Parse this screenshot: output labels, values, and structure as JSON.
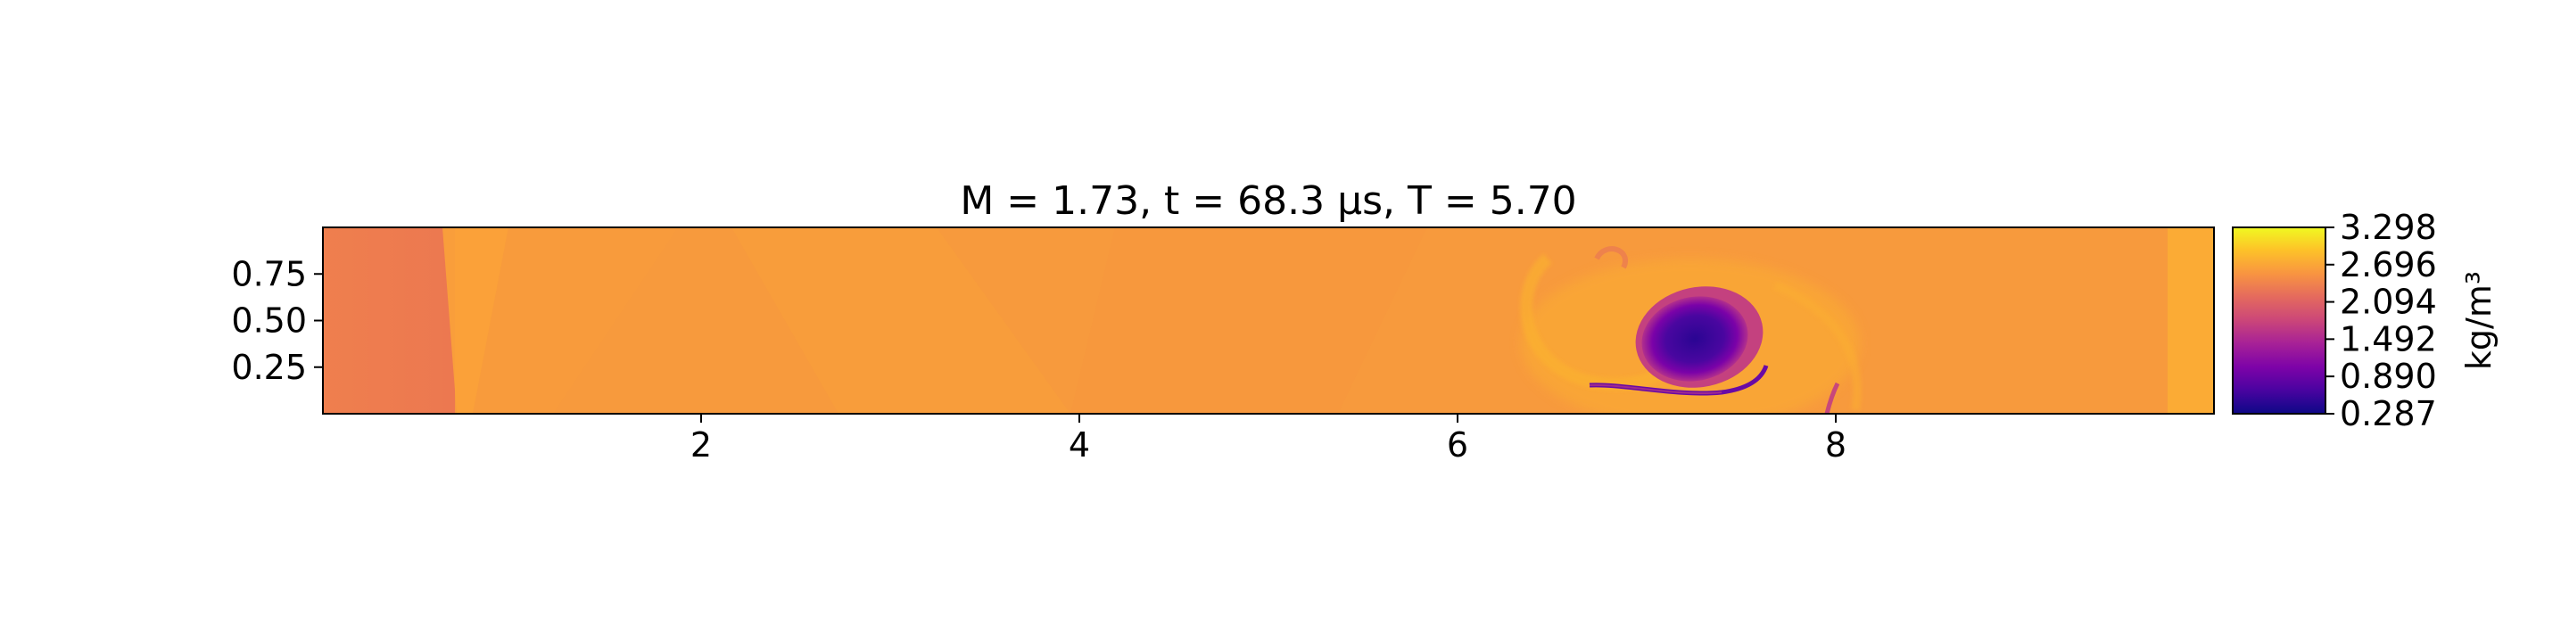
{
  "chart_data": {
    "type": "heatmap",
    "title": "M = 1.73, t = 68.3 μs, T = 5.70",
    "xlabel": "",
    "ylabel": "",
    "xlim": [
      0,
      10
    ],
    "ylim": [
      0,
      1
    ],
    "x_ticks": [
      {
        "value": 2,
        "label": "2"
      },
      {
        "value": 4,
        "label": "4"
      },
      {
        "value": 6,
        "label": "6"
      },
      {
        "value": 8,
        "label": "8"
      }
    ],
    "y_ticks": [
      {
        "value": 0.25,
        "label": "0.25"
      },
      {
        "value": 0.5,
        "label": "0.50"
      },
      {
        "value": 0.75,
        "label": "0.75"
      }
    ],
    "colorbar": {
      "label": "kg/m³",
      "colormap": "plasma",
      "range": [
        0.287,
        3.298
      ],
      "ticks": [
        {
          "value": 3.298,
          "label": "3.298"
        },
        {
          "value": 2.696,
          "label": "2.696"
        },
        {
          "value": 2.094,
          "label": "2.094"
        },
        {
          "value": 1.492,
          "label": "1.492"
        },
        {
          "value": 0.89,
          "label": "0.890"
        },
        {
          "value": 0.287,
          "label": "0.287"
        }
      ]
    },
    "field_features": [
      {
        "name": "background",
        "density": 2.55
      },
      {
        "name": "inflow-region",
        "x_range": [
          0,
          0.7
        ],
        "density": 2.3
      },
      {
        "name": "shock-front",
        "x": 0.7,
        "density": 2.75
      },
      {
        "name": "outflow-band",
        "x_range": [
          9.76,
          10
        ],
        "density": 2.85
      },
      {
        "name": "vortex-core",
        "x": 7.25,
        "y": 0.42,
        "density": 0.45
      },
      {
        "name": "vortex-tail",
        "x_range": [
          6.7,
          7.8
        ],
        "y": 0.15,
        "density": 0.9
      },
      {
        "name": "lower-filament",
        "x": 8.0,
        "y": 0.08,
        "density": 1.2
      }
    ]
  }
}
